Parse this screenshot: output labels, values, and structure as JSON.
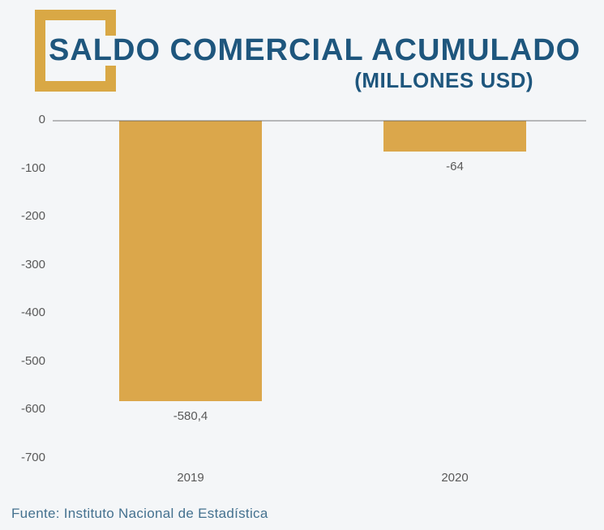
{
  "background": "#F4F6F8",
  "colors": {
    "bar": "#DBA74B",
    "logo": "#D9A845",
    "title_text": "#1E567D",
    "axis_text": "#595959",
    "zero_line": "#8F8F8F",
    "source_text": "#44718F"
  },
  "header": {
    "title": "SALDO COMERCIAL ACUMULADO",
    "subtitle": "(MILLONES USD)"
  },
  "chart_data": {
    "type": "bar",
    "title": "SALDO COMERCIAL ACUMULADO",
    "subtitle": "(MILLONES USD)",
    "categories": [
      "2019",
      "2020"
    ],
    "values": [
      -580.4,
      -64
    ],
    "value_labels": [
      "-580,4",
      "-64"
    ],
    "xlabel": "",
    "ylabel": "",
    "ylim": [
      -700,
      0
    ],
    "ytick_step": 100,
    "yticks": [
      "0",
      "-100",
      "-200",
      "-300",
      "-400",
      "-500",
      "-600",
      "-700"
    ],
    "grid": false,
    "legend": false,
    "bar_color": "#DBA74B"
  },
  "source": {
    "text": "Fuente: Instituto Nacional de Estadística"
  }
}
